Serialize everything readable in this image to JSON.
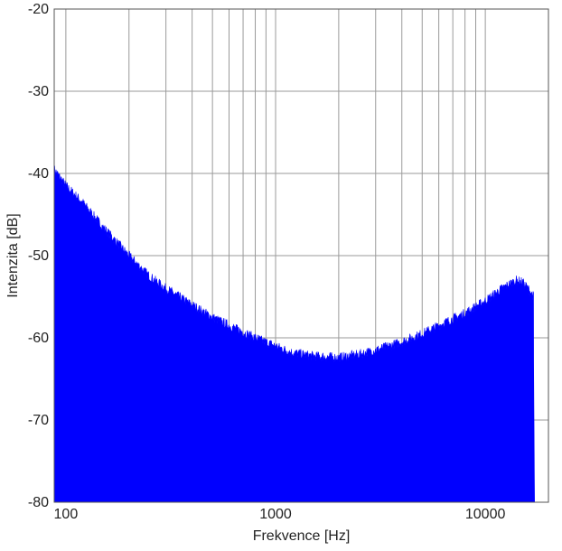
{
  "chart_data": {
    "type": "area",
    "title": "",
    "xlabel": "Frekvence [Hz]",
    "ylabel": "Intenzita [dB]",
    "x_scale": "log",
    "xlim": [
      88,
      20000
    ],
    "ylim": [
      -80,
      -20
    ],
    "x_ticks": [
      100,
      1000,
      10000
    ],
    "x_tick_labels": [
      "100",
      "1000",
      "10000"
    ],
    "y_ticks": [
      -20,
      -30,
      -40,
      -50,
      -60,
      -70,
      -80
    ],
    "y_tick_labels": [
      "-20",
      "-30",
      "-40",
      "-50",
      "-60",
      "-70",
      "-80"
    ],
    "grid": true,
    "fill_color": "#0000ff",
    "series": [
      {
        "x": [
          88,
          100,
          120,
          150,
          200,
          250,
          300,
          400,
          500,
          600,
          800,
          1000,
          1200,
          1500,
          2000,
          2500,
          3000,
          4000,
          5000,
          6000,
          8000,
          10000,
          12000,
          14000,
          15000,
          16000,
          17000,
          17500
        ],
        "values": [
          -39.5,
          -41.5,
          -43.5,
          -46.5,
          -50.0,
          -52.5,
          -54.0,
          -56.0,
          -57.5,
          -58.5,
          -60.0,
          -61.0,
          -61.8,
          -62.2,
          -62.4,
          -62.0,
          -61.5,
          -60.5,
          -59.5,
          -58.5,
          -57.0,
          -55.5,
          -54.0,
          -53.0,
          -53.2,
          -54.0,
          -55.0,
          -80.0
        ]
      }
    ]
  }
}
